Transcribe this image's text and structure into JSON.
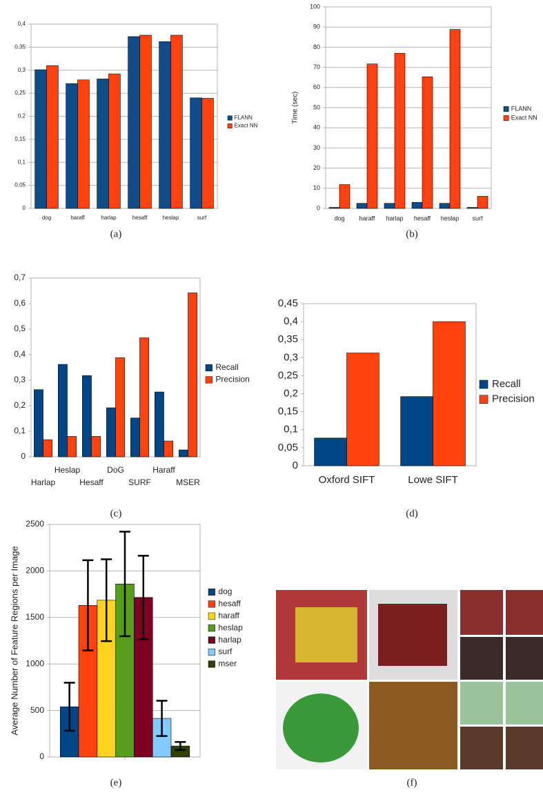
{
  "chart_data": [
    {
      "type": "bar",
      "categories": [
        "dog",
        "haraff",
        "harlap",
        "hesaff",
        "heslap",
        "surf"
      ],
      "series": [
        {
          "name": "FLANN",
          "color": "#0e4c8a",
          "values": [
            0.301,
            0.271,
            0.281,
            0.373,
            0.362,
            0.24
          ]
        },
        {
          "name": "Exact NN",
          "color": "#ff420e",
          "values": [
            0.31,
            0.279,
            0.292,
            0.376,
            0.376,
            0.239
          ]
        }
      ],
      "ylim": [
        0,
        0.4
      ],
      "yticks": [
        0,
        {
          "value": 0.05,
          "label": "0,05"
        },
        {
          "value": 0.1,
          "label": "0,1"
        },
        {
          "value": 0.15,
          "label": "0,15"
        },
        {
          "value": 0.2,
          "label": "0,2"
        },
        {
          "value": 0.25,
          "label": "0,25"
        },
        {
          "value": 0.3,
          "label": "0,3"
        },
        {
          "value": 0.35,
          "label": "0,35"
        },
        {
          "value": 0.4,
          "label": "0,4"
        }
      ],
      "grid": true,
      "legend": "right"
    },
    {
      "type": "bar",
      "ylabel": "Time (sec)",
      "categories": [
        "dog",
        "haraff",
        "harlap",
        "hesaff",
        "heslap",
        "surf"
      ],
      "series": [
        {
          "name": "FLANN",
          "color": "#0e4c8a",
          "values": [
            0.5,
            2.5,
            2.5,
            3,
            2.5,
            0.5
          ]
        },
        {
          "name": "Exact NN",
          "color": "#ff420e",
          "values": [
            11.8,
            71.7,
            77,
            65.3,
            88.8,
            6
          ]
        }
      ],
      "ylim": [
        0,
        100
      ],
      "yticks": [
        0,
        10,
        20,
        30,
        40,
        50,
        60,
        70,
        80,
        90,
        100
      ],
      "grid": true,
      "legend": "right"
    },
    {
      "type": "bar",
      "categories": [
        "Harlap",
        "Heslap",
        "Hesaff",
        "DoG",
        "SURF",
        "Haraff",
        "MSER"
      ],
      "series": [
        {
          "name": "Recall",
          "color": "#004586",
          "values": [
            0.263,
            0.362,
            0.318,
            0.192,
            0.152,
            0.254,
            0.027
          ]
        },
        {
          "name": "Precision",
          "color": "#ff420e",
          "values": [
            0.067,
            0.08,
            0.08,
            0.388,
            0.466,
            0.062,
            0.642
          ]
        }
      ],
      "ylim": [
        0,
        0.7
      ],
      "yticks": [
        0,
        {
          "value": 0.1,
          "label": "0,1"
        },
        {
          "value": 0.2,
          "label": "0,2"
        },
        {
          "value": 0.3,
          "label": "0,3"
        },
        {
          "value": 0.4,
          "label": "0,4"
        },
        {
          "value": 0.5,
          "label": "0,5"
        },
        {
          "value": 0.6,
          "label": "0,6"
        },
        {
          "value": 0.7,
          "label": "0,7"
        }
      ],
      "grid": false,
      "legend": "right"
    },
    {
      "type": "bar",
      "categories": [
        "Oxford SIFT",
        "Lowe SIFT"
      ],
      "series": [
        {
          "name": "Recall",
          "color": "#004586",
          "values": [
            0.077,
            0.192
          ]
        },
        {
          "name": "Precision",
          "color": "#ff420e",
          "values": [
            0.313,
            0.4
          ]
        }
      ],
      "ylim": [
        0,
        0.45
      ],
      "yticks": [
        0,
        {
          "value": 0.05,
          "label": "0,05"
        },
        {
          "value": 0.1,
          "label": "0,1"
        },
        {
          "value": 0.15,
          "label": "0,15"
        },
        {
          "value": 0.2,
          "label": "0,2"
        },
        {
          "value": 0.25,
          "label": "0,25"
        },
        {
          "value": 0.3,
          "label": "0,3"
        },
        {
          "value": 0.35,
          "label": "0,35"
        },
        {
          "value": 0.4,
          "label": "0,4"
        },
        {
          "value": 0.45,
          "label": "0,45"
        }
      ],
      "grid": false,
      "legend": "right"
    },
    {
      "type": "bar",
      "ylabel": "Average Number of Feature Regions per Image",
      "categories": [
        null
      ],
      "series": [
        {
          "name": "dog",
          "color": "#004586",
          "values": [
            540
          ],
          "errors": [
            258
          ]
        },
        {
          "name": "hesaff",
          "color": "#ff420e",
          "values": [
            1630
          ],
          "errors": [
            485
          ]
        },
        {
          "name": "haraff",
          "color": "#ffd320",
          "values": [
            1685
          ],
          "errors": [
            440
          ]
        },
        {
          "name": "heslap",
          "color": "#579d1c",
          "values": [
            1860
          ],
          "errors": [
            562
          ]
        },
        {
          "name": "harlap",
          "color": "#7e0021",
          "values": [
            1715
          ],
          "errors": [
            448
          ]
        },
        {
          "name": "surf",
          "color": "#83caff",
          "values": [
            415
          ],
          "errors": [
            190
          ]
        },
        {
          "name": "mser",
          "color": "#314004",
          "values": [
            118
          ],
          "errors": [
            43
          ]
        }
      ],
      "ylim": [
        0,
        2500
      ],
      "yticks": [
        0,
        500,
        1000,
        1500,
        2000,
        2500
      ],
      "grid": true,
      "legend": "right"
    }
  ],
  "captions": [
    "(a)",
    "(b)",
    "(c)",
    "(d)",
    "(e)",
    "(f)"
  ]
}
